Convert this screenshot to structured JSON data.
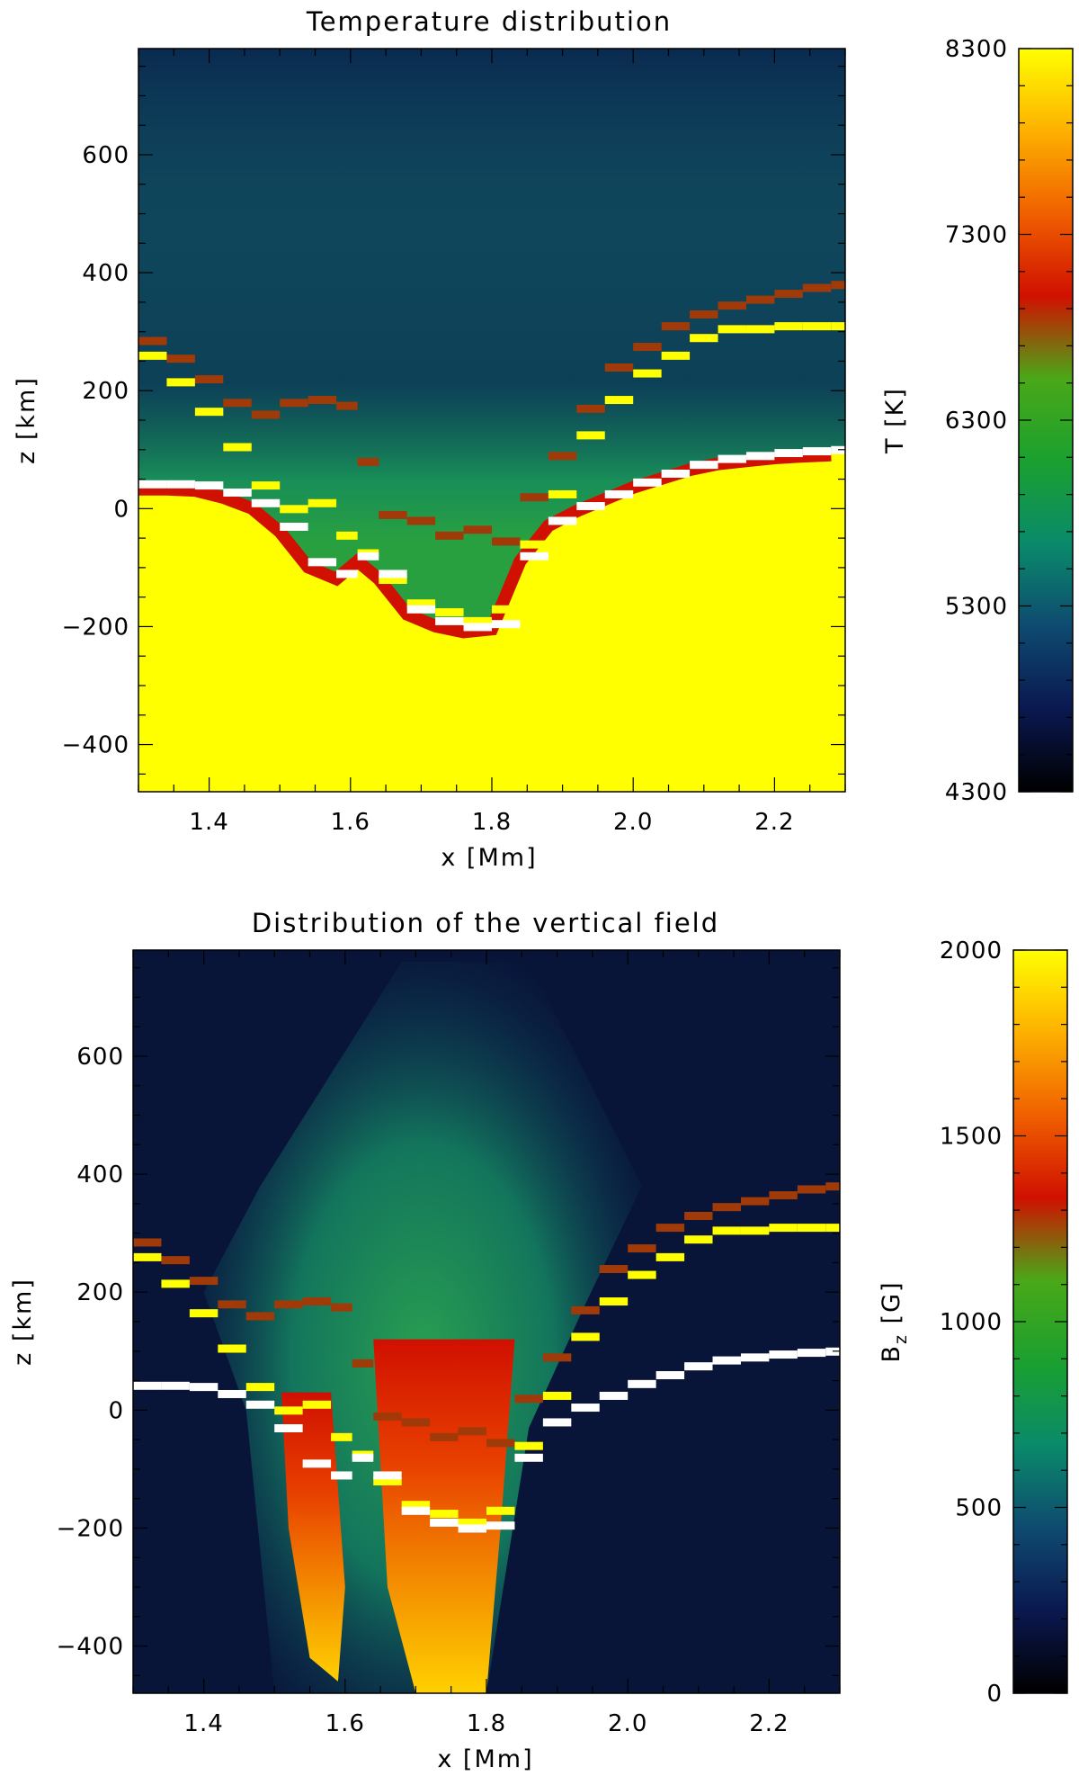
{
  "chart_data": [
    {
      "type": "heatmap",
      "title": "Temperature distribution",
      "xlabel": "x [Mm]",
      "ylabel": "z [km]",
      "xlim": [
        1.3,
        2.3
      ],
      "ylim": [
        -480,
        780
      ],
      "xticks": [
        1.4,
        1.6,
        1.8,
        2.0,
        2.2
      ],
      "xtick_labels": [
        "1.4",
        "1.6",
        "1.8",
        "2.0",
        "2.2"
      ],
      "yticks": [
        -400,
        -200,
        0,
        200,
        400,
        600
      ],
      "ytick_labels": [
        "−400",
        "−200",
        "0",
        "200",
        "400",
        "600"
      ],
      "colorbar": {
        "label": "T [K]",
        "min": 4300,
        "max": 8300,
        "ticks": [
          4300,
          5300,
          6300,
          7300,
          8300
        ],
        "tick_labels": [
          "4300",
          "5300",
          "6300",
          "7300",
          "8300"
        ]
      },
      "colormap": [
        "#000000",
        "#0a1850",
        "#0e4a70",
        "#0a8a6a",
        "#1aa030",
        "#4aa818",
        "#d01000",
        "#f06000",
        "#fdb000",
        "#ffff00"
      ]
    },
    {
      "type": "heatmap",
      "title": "Distribution of the vertical field",
      "xlabel": "x [Mm]",
      "ylabel": "z [km]",
      "xlim": [
        1.3,
        2.3
      ],
      "ylim": [
        -480,
        780
      ],
      "xticks": [
        1.4,
        1.6,
        1.8,
        2.0,
        2.2
      ],
      "xtick_labels": [
        "1.4",
        "1.6",
        "1.8",
        "2.0",
        "2.2"
      ],
      "yticks": [
        -400,
        -200,
        0,
        200,
        400,
        600
      ],
      "ytick_labels": [
        "−400",
        "−200",
        "0",
        "200",
        "400",
        "600"
      ],
      "colorbar": {
        "label": "B",
        "label_sub": "z",
        "label_unit": " [G]",
        "min": 0,
        "max": 2000,
        "ticks": [
          0,
          500,
          1000,
          1500,
          2000
        ],
        "tick_labels": [
          "0",
          "500",
          "1000",
          "1500",
          "2000"
        ]
      },
      "colormap": [
        "#000000",
        "#0a1850",
        "#0e4a70",
        "#0a8a6a",
        "#1aa030",
        "#4aa818",
        "#d01000",
        "#f06000",
        "#fdb000",
        "#ffff00"
      ]
    }
  ],
  "overlay_lines": {
    "brown": {
      "color": "#a03a08",
      "x": [
        1.3,
        1.34,
        1.38,
        1.42,
        1.46,
        1.5,
        1.54,
        1.58,
        1.61,
        1.64,
        1.68,
        1.72,
        1.76,
        1.8,
        1.84,
        1.88,
        1.92,
        1.96,
        2.0,
        2.04,
        2.08,
        2.12,
        2.16,
        2.2,
        2.24,
        2.28
      ],
      "z": [
        285,
        255,
        220,
        180,
        160,
        180,
        185,
        175,
        80,
        -10,
        -20,
        -45,
        -35,
        -55,
        20,
        90,
        170,
        240,
        275,
        310,
        330,
        345,
        355,
        365,
        375,
        380
      ]
    },
    "yellow": {
      "color": "#ffff00",
      "x": [
        1.3,
        1.34,
        1.38,
        1.42,
        1.46,
        1.5,
        1.54,
        1.58,
        1.61,
        1.64,
        1.68,
        1.72,
        1.76,
        1.8,
        1.84,
        1.88,
        1.92,
        1.96,
        2.0,
        2.04,
        2.08,
        2.12,
        2.16,
        2.2,
        2.24,
        2.28
      ],
      "z": [
        260,
        215,
        165,
        105,
        40,
        0,
        10,
        -45,
        -75,
        -120,
        -160,
        -175,
        -190,
        -170,
        -60,
        25,
        125,
        185,
        230,
        260,
        290,
        305,
        305,
        310,
        310,
        310
      ]
    },
    "white": {
      "color": "#ffffff",
      "x": [
        1.3,
        1.34,
        1.38,
        1.42,
        1.46,
        1.5,
        1.54,
        1.58,
        1.61,
        1.64,
        1.68,
        1.72,
        1.76,
        1.8,
        1.84,
        1.88,
        1.92,
        1.96,
        2.0,
        2.04,
        2.08,
        2.12,
        2.16,
        2.2,
        2.24,
        2.28
      ],
      "z": [
        42,
        42,
        40,
        28,
        10,
        -30,
        -90,
        -110,
        -80,
        -110,
        -170,
        -190,
        -200,
        -195,
        -80,
        -20,
        5,
        25,
        45,
        60,
        75,
        85,
        90,
        95,
        98,
        100
      ]
    }
  }
}
